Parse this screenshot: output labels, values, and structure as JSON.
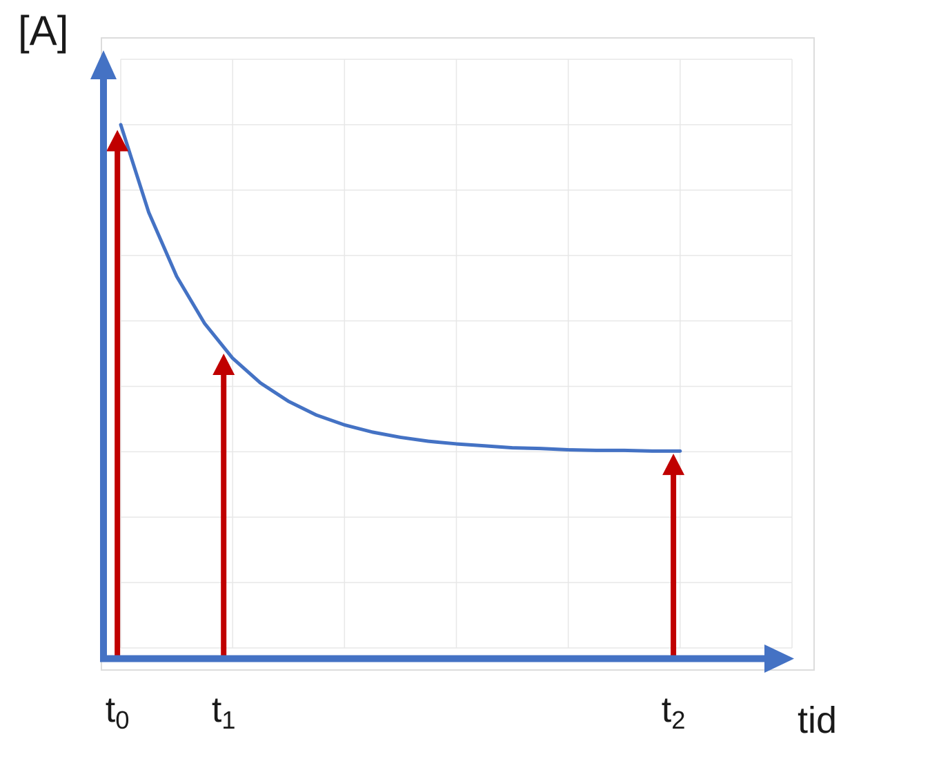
{
  "figure": {
    "y_axis_label": "[A]",
    "x_axis_label": "tid",
    "background": "#ffffff"
  },
  "colors": {
    "axis_blue": "#4472C4",
    "curve_blue": "#4472C4",
    "marker_red": "#C00000",
    "grid_line": "#E7E7E7",
    "chart_border": "#DCDCDC",
    "text": "#1A1A1A"
  },
  "chart_data": {
    "type": "line",
    "title": "",
    "xlabel": "tid",
    "ylabel": "[A]",
    "axis_numeric_labels": false,
    "grid": {
      "shown": true,
      "cols": 6,
      "rows": 9
    },
    "ylim_grid_units": [
      0,
      9
    ],
    "xlim_grid_units": [
      0,
      6
    ],
    "series": [
      {
        "name": "[A] exponential decay, start 8.0 units, asymptote 3.0 units",
        "color": "#4472C4",
        "x": [
          0,
          0.25,
          0.5,
          0.75,
          1,
          1.25,
          1.5,
          1.75,
          2,
          2.25,
          2.5,
          2.75,
          3,
          3.25,
          3.5,
          3.75,
          4,
          4.25,
          4.5,
          4.75,
          5
        ],
        "y": [
          8.0,
          6.66,
          5.68,
          4.96,
          4.43,
          4.05,
          3.77,
          3.56,
          3.41,
          3.3,
          3.22,
          3.16,
          3.12,
          3.09,
          3.06,
          3.05,
          3.03,
          3.02,
          3.02,
          3.01,
          3.01
        ]
      }
    ],
    "markers": [
      {
        "base": "t",
        "sub": "0",
        "x": -0.03,
        "arrow_top": 7.92
      },
      {
        "base": "t",
        "sub": "1",
        "x": 0.92,
        "arrow_top": 4.5
      },
      {
        "base": "t",
        "sub": "2",
        "x": 4.94,
        "arrow_top": 2.97
      }
    ],
    "legend": {
      "shown": false
    }
  }
}
